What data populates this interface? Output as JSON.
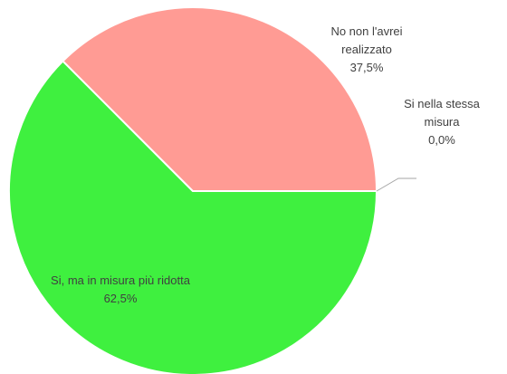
{
  "chart_data": {
    "type": "pie",
    "categories": [
      "Si, ma in misura più ridotta",
      "No non l'avrei realizzato",
      "Si nella stessa misura"
    ],
    "values": [
      62.5,
      37.5,
      0
    ],
    "value_labels": [
      "62,5%",
      "37,5%",
      "0,0%"
    ],
    "colors": [
      "#3ff03f",
      "#ff9b94",
      "#9bbb59"
    ]
  }
}
